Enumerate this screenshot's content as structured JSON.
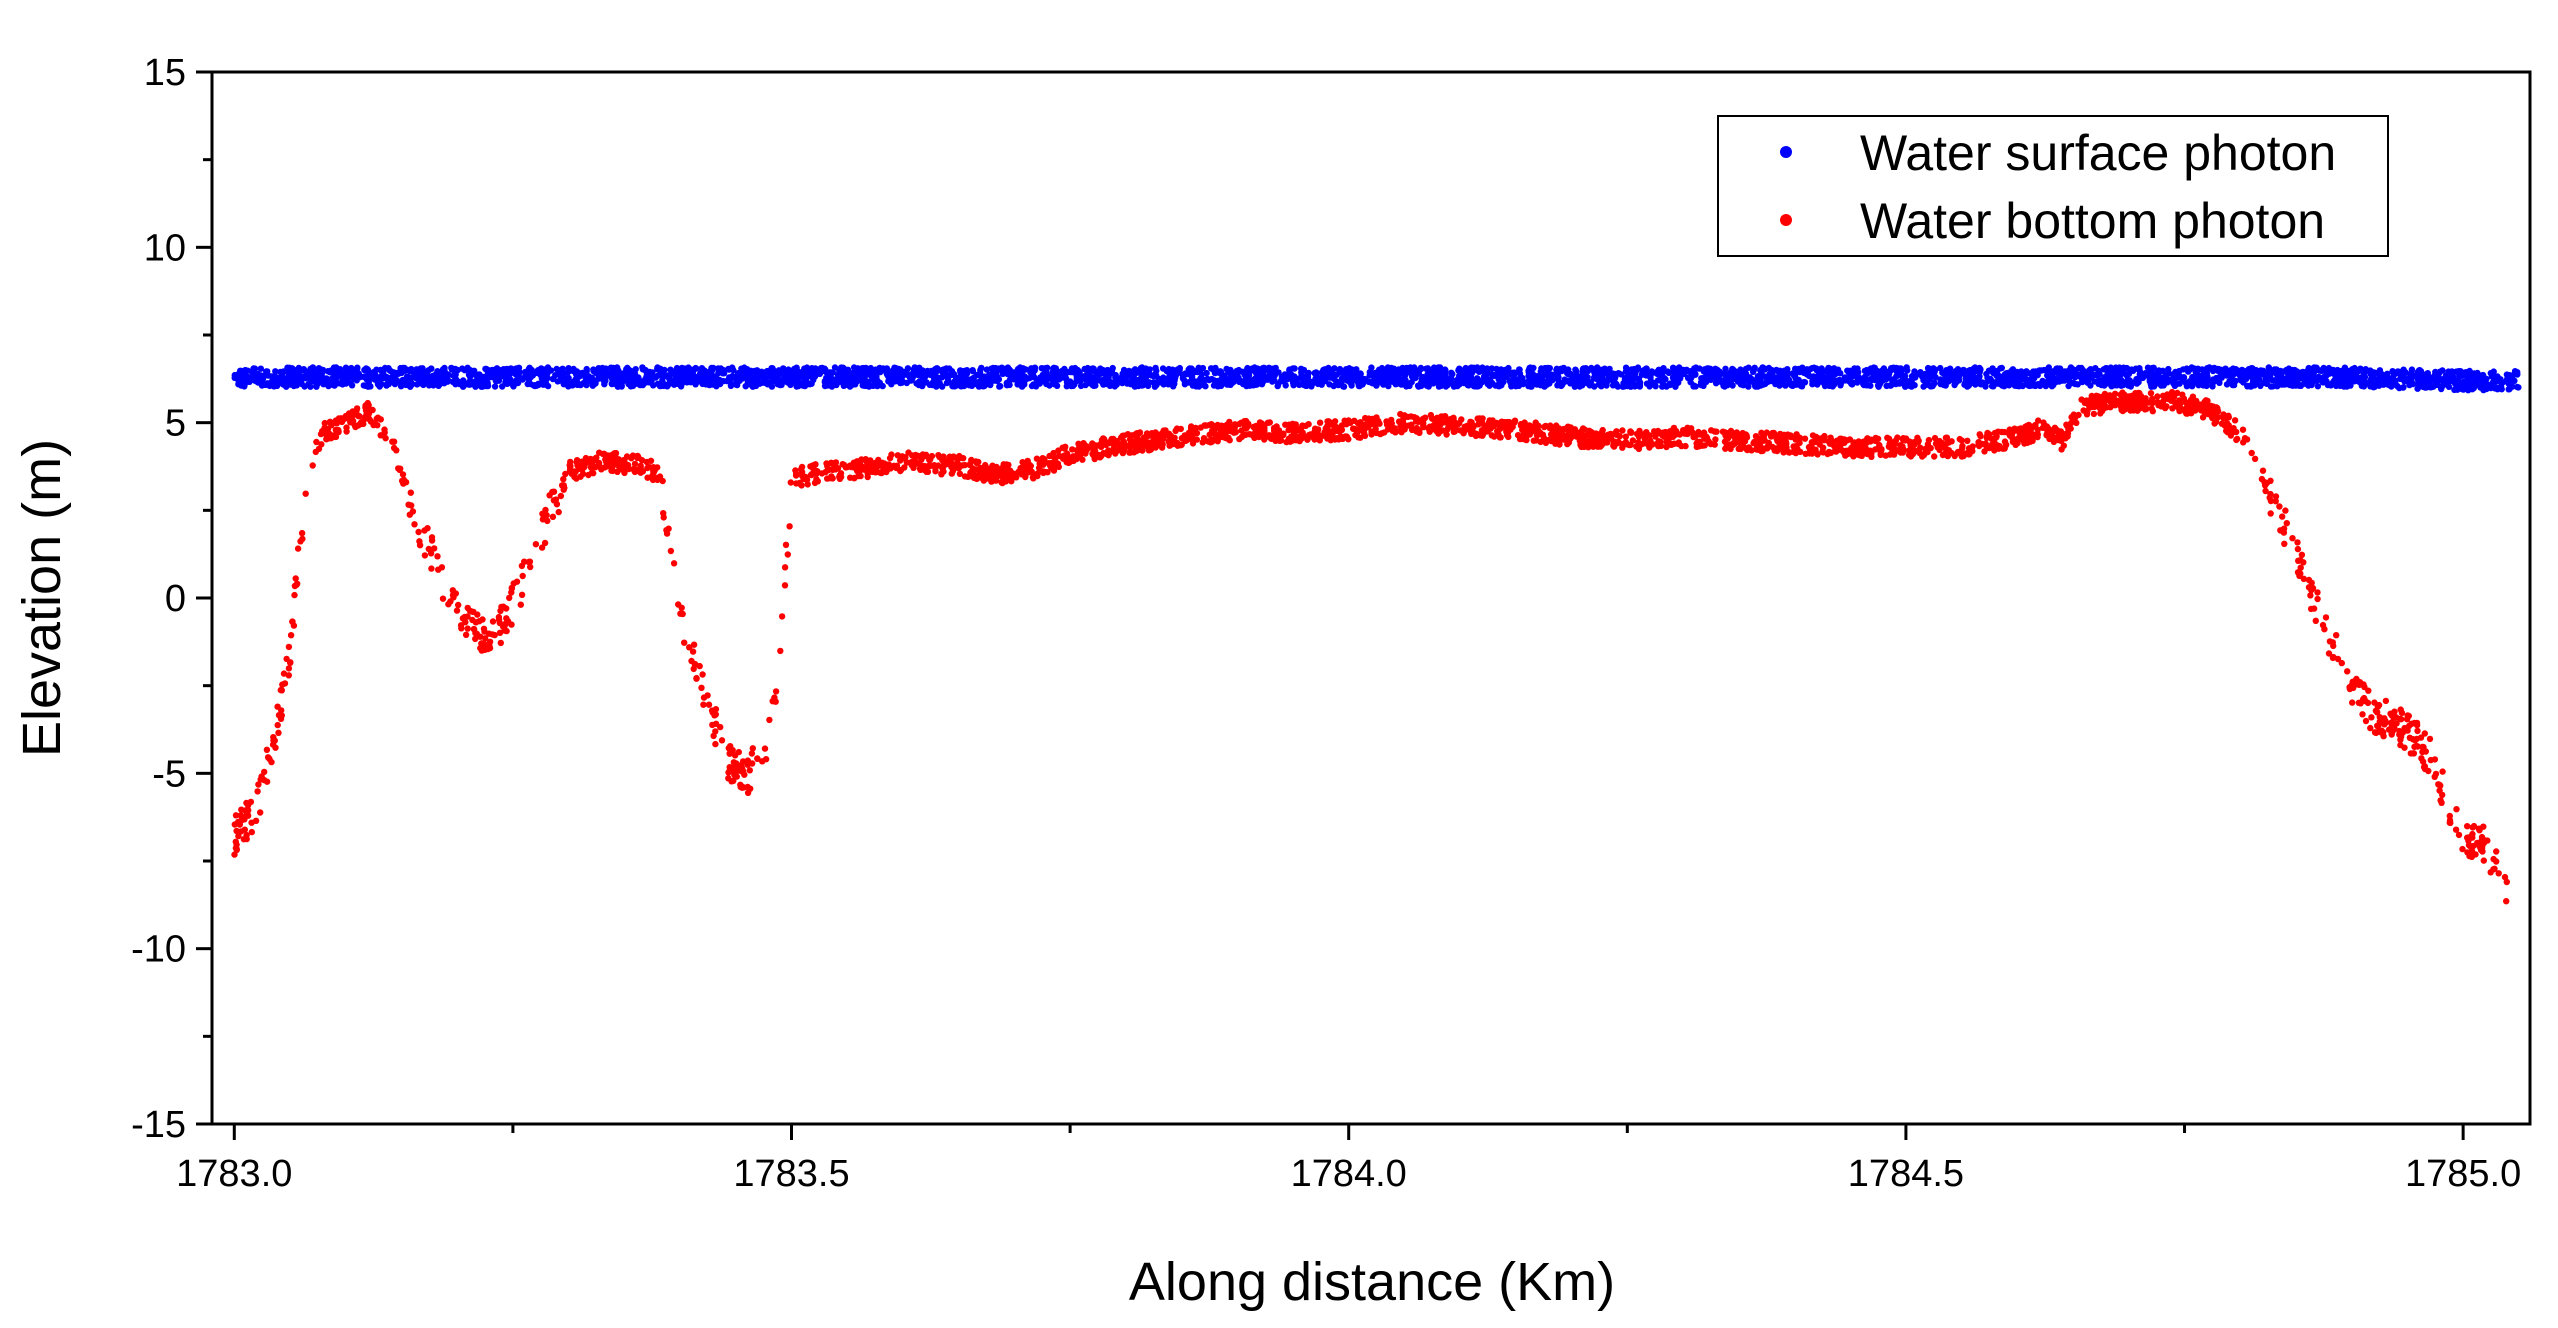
{
  "chart_data": {
    "type": "scatter",
    "title": "",
    "xlabel": "Along distance (Km)",
    "ylabel": "Elevation (m)",
    "xlim": [
      1782.98,
      1785.06
    ],
    "ylim": [
      -15,
      15
    ],
    "x_ticks": [
      1783.0,
      1783.5,
      1784.0,
      1784.5,
      1785.0
    ],
    "x_tick_labels": [
      "1783.0",
      "1783.5",
      "1784.0",
      "1784.5",
      "1785.0"
    ],
    "y_ticks": [
      -15,
      -10,
      -5,
      0,
      5,
      10,
      15
    ],
    "y_tick_labels": [
      "-15",
      "-10",
      "-5",
      "0",
      "5",
      "10",
      "15"
    ],
    "grid": false,
    "legend_position": "top-right",
    "series": [
      {
        "name": "Water surface photon",
        "color": "#0000ff",
        "marker": "dot",
        "x": [
          1783.0,
          1783.1,
          1783.2,
          1783.3,
          1783.4,
          1783.5,
          1783.6,
          1783.7,
          1783.8,
          1783.9,
          1784.0,
          1784.1,
          1784.2,
          1784.3,
          1784.4,
          1784.5,
          1784.6,
          1784.7,
          1784.8,
          1784.9,
          1785.0,
          1785.05
        ],
        "y": [
          6.3,
          6.3,
          6.3,
          6.3,
          6.3,
          6.3,
          6.3,
          6.3,
          6.3,
          6.3,
          6.3,
          6.3,
          6.3,
          6.3,
          6.3,
          6.3,
          6.3,
          6.3,
          6.3,
          6.3,
          6.2,
          6.2
        ]
      },
      {
        "name": "Water bottom photon",
        "color": "#ff0000",
        "marker": "dot",
        "x": [
          1783.0,
          1783.02,
          1783.04,
          1783.05,
          1783.06,
          1783.07,
          1783.08,
          1783.1,
          1783.12,
          1783.14,
          1783.16,
          1783.18,
          1783.2,
          1783.22,
          1783.24,
          1783.26,
          1783.28,
          1783.3,
          1783.33,
          1783.36,
          1783.38,
          1783.39,
          1783.4,
          1783.42,
          1783.44,
          1783.46,
          1783.48,
          1783.49,
          1783.5,
          1783.53,
          1783.57,
          1783.6,
          1783.63,
          1783.65,
          1783.68,
          1783.72,
          1783.75,
          1783.8,
          1783.85,
          1783.9,
          1783.95,
          1784.0,
          1784.05,
          1784.1,
          1784.15,
          1784.2,
          1784.25,
          1784.3,
          1784.35,
          1784.4,
          1784.45,
          1784.5,
          1784.55,
          1784.6,
          1784.62,
          1784.64,
          1784.66,
          1784.7,
          1784.74,
          1784.77,
          1784.8,
          1784.82,
          1784.84,
          1784.86,
          1784.88,
          1784.9,
          1784.92,
          1784.95,
          1784.97,
          1785.0,
          1785.02,
          1785.04
        ],
        "y": [
          -6.8,
          -6.0,
          -3.5,
          -1.5,
          2.0,
          4.0,
          4.7,
          5.0,
          5.3,
          4.6,
          2.5,
          1.0,
          -0.3,
          -1.0,
          -0.8,
          0.5,
          2.2,
          3.6,
          3.9,
          3.8,
          3.6,
          2.0,
          -0.5,
          -2.5,
          -4.5,
          -5.1,
          -4.0,
          -1.5,
          3.4,
          3.6,
          3.7,
          3.9,
          3.8,
          3.8,
          3.5,
          3.7,
          4.1,
          4.4,
          4.6,
          4.8,
          4.7,
          4.8,
          5.0,
          4.9,
          4.8,
          4.6,
          4.5,
          4.6,
          4.5,
          4.4,
          4.3,
          4.3,
          4.3,
          4.6,
          4.8,
          4.5,
          5.5,
          5.6,
          5.6,
          5.4,
          4.7,
          3.5,
          2.0,
          0.5,
          -1.2,
          -2.5,
          -3.3,
          -3.8,
          -4.5,
          -6.8,
          -7.0,
          -8.5
        ]
      }
    ]
  }
}
